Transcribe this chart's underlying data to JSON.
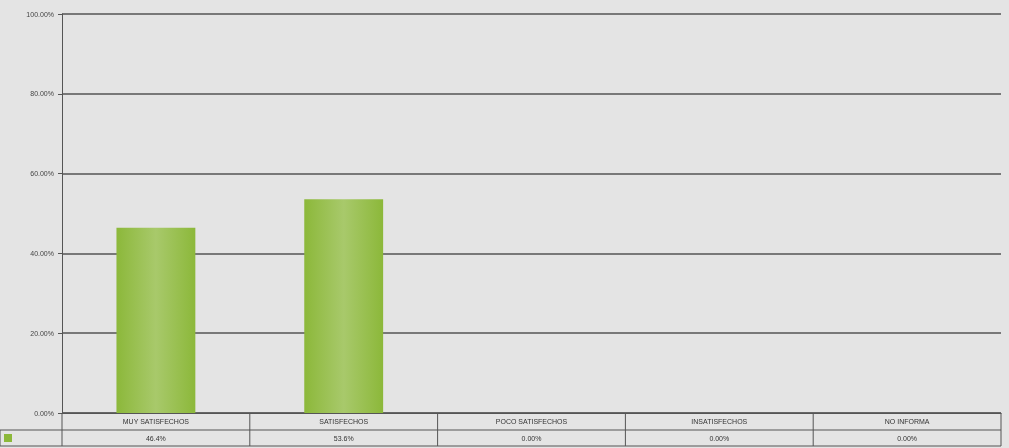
{
  "chart_data": {
    "type": "bar",
    "categories": [
      "MUY SATISFECHOS",
      "SATISFECHOS",
      "POCO SATISFECHOS",
      "INSATISFECHOS",
      "NO INFORMA"
    ],
    "series": [
      {
        "color": "#8cb83a",
        "values": [
          46.4,
          53.6,
          0,
          0,
          0
        ],
        "value_labels": [
          "46.4%",
          "53.6%",
          "0.00%",
          "0.00%",
          "0.00%"
        ]
      }
    ],
    "ylim": [
      0,
      100
    ],
    "yticks": [
      {
        "value": 0,
        "label": "0.00%"
      },
      {
        "value": 20,
        "label": "20.00%"
      },
      {
        "value": 40,
        "label": "40.00%"
      },
      {
        "value": 60,
        "label": "60.00%"
      },
      {
        "value": 80,
        "label": "80.00%"
      },
      {
        "value": 100,
        "label": "100.00%"
      }
    ],
    "grid": "y"
  }
}
